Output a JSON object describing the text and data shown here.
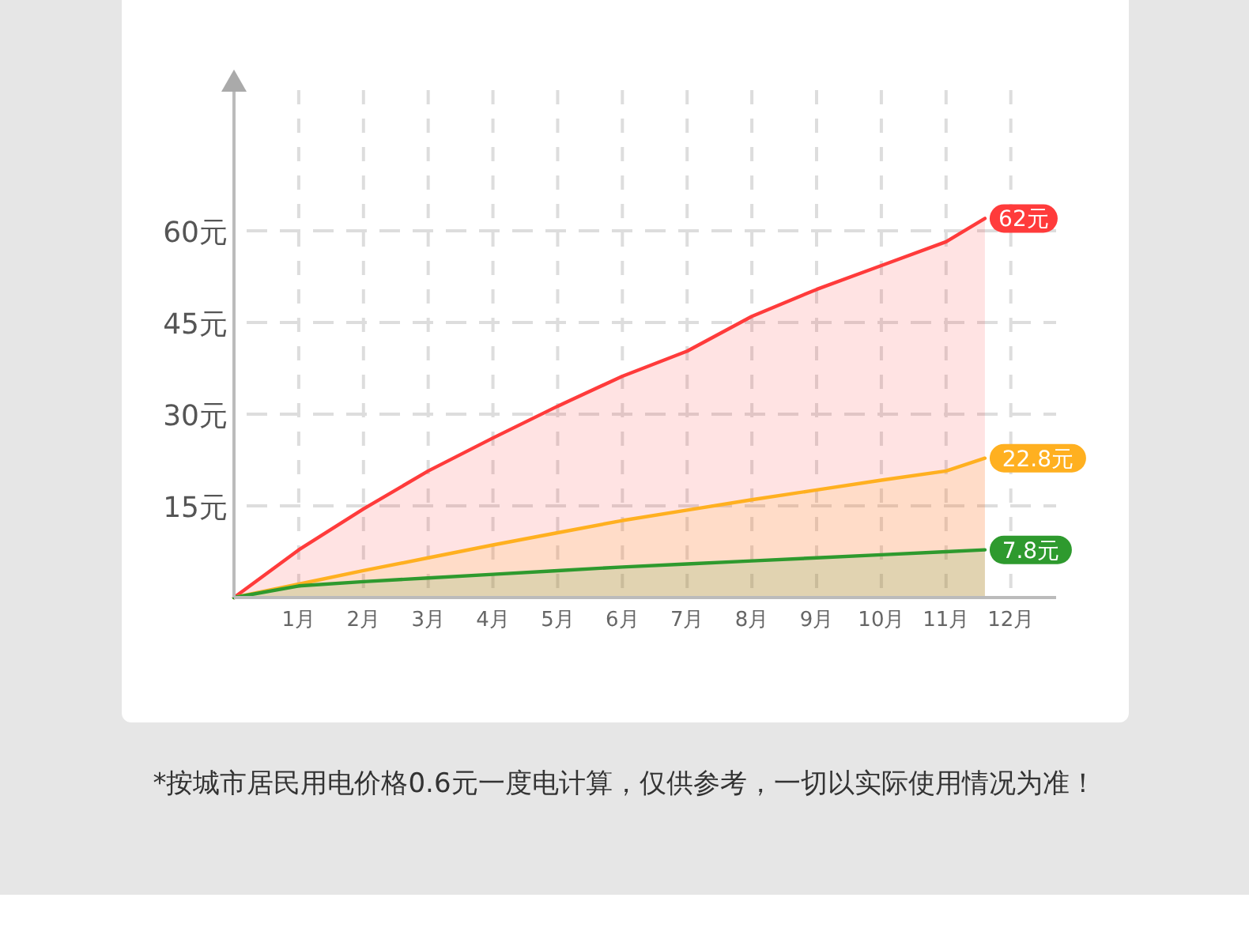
{
  "chart_data": {
    "type": "area",
    "x": [
      0,
      1,
      2,
      3,
      4,
      5,
      6,
      7,
      8,
      9,
      10,
      11,
      11.6
    ],
    "xlim": [
      0,
      12.7
    ],
    "ylim": [
      0,
      83
    ],
    "xticks": [
      {
        "value": 1,
        "label": "1月"
      },
      {
        "value": 2,
        "label": "2月"
      },
      {
        "value": 3,
        "label": "3月"
      },
      {
        "value": 4,
        "label": "4月"
      },
      {
        "value": 5,
        "label": "5月"
      },
      {
        "value": 6,
        "label": "6月"
      },
      {
        "value": 7,
        "label": "7月"
      },
      {
        "value": 8,
        "label": "8月"
      },
      {
        "value": 9,
        "label": "9月"
      },
      {
        "value": 10,
        "label": "10月"
      },
      {
        "value": 11,
        "label": "11月"
      },
      {
        "value": 12,
        "label": "12月"
      }
    ],
    "yticks": [
      {
        "value": 15,
        "label": "15元"
      },
      {
        "value": 30,
        "label": "30元"
      },
      {
        "value": 45,
        "label": "45元"
      },
      {
        "value": 60,
        "label": "60元"
      }
    ],
    "grid": true,
    "series": [
      {
        "color": "#ff3b3b",
        "values": [
          0,
          7.8,
          14.5,
          20.7,
          26.1,
          31.3,
          36.2,
          40.3,
          46.0,
          50.4,
          54.3,
          58.2,
          62
        ],
        "value_labels": [
          null,
          null,
          null,
          null,
          null,
          null,
          null,
          null,
          null,
          null,
          null,
          null,
          "62元"
        ]
      },
      {
        "color": "#ffb020",
        "values": [
          0,
          2.2,
          4.4,
          6.5,
          8.6,
          10.6,
          12.6,
          14.3,
          16.0,
          17.6,
          19.2,
          20.7,
          22.8
        ],
        "value_labels": [
          null,
          null,
          null,
          null,
          null,
          null,
          null,
          null,
          null,
          null,
          null,
          null,
          "22.8元"
        ]
      },
      {
        "color": "#2e9a2e",
        "values": [
          0,
          1.9,
          2.6,
          3.2,
          3.8,
          4.4,
          5.0,
          5.5,
          6.0,
          6.5,
          7.0,
          7.5,
          7.8
        ],
        "value_labels": [
          null,
          null,
          null,
          null,
          null,
          null,
          null,
          null,
          null,
          null,
          null,
          null,
          "7.8元"
        ]
      }
    ],
    "annotations": [
      "*按城市居民用电价格0.6元一度电计算，仅供参考，一切以实际使用情况为准！"
    ]
  }
}
